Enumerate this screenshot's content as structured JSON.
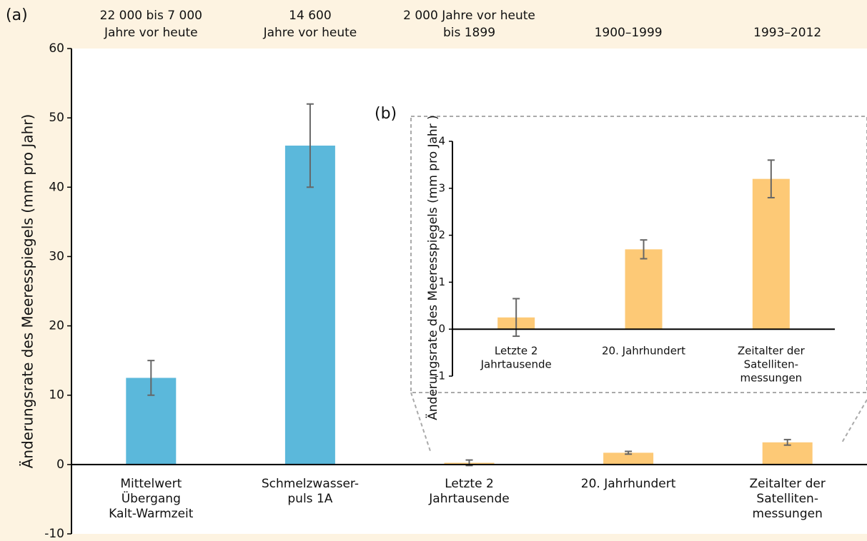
{
  "chart_data": [
    {
      "type": "bar",
      "panel": "(a)",
      "ylabel": "Änderungsrate des Meeresspiegels (mm pro Jahr)",
      "periods": [
        [
          "22 000 bis 7 000",
          "Jahre vor heute"
        ],
        [
          "14 600",
          "Jahre vor heute"
        ],
        [
          "2 000 Jahre vor heute",
          "bis 1899"
        ],
        [
          "1900–1999"
        ],
        [
          "1993–2012"
        ]
      ],
      "categories": [
        [
          "Mittelwert",
          "Übergang",
          "Kalt-Warmzeit"
        ],
        [
          "Schmelzwasser-",
          "puls 1A"
        ],
        [
          "Letzte 2",
          "Jahrtausende"
        ],
        [
          "20. Jahrhundert"
        ],
        [
          "Zeitalter der",
          "Satelliten-",
          "messungen"
        ]
      ],
      "values": [
        12.5,
        46,
        0.25,
        1.7,
        3.2
      ],
      "errors": [
        2.5,
        6,
        0.4,
        0.2,
        0.4
      ],
      "colors": [
        "#5bb8db",
        "#5bb8db",
        "#fdc976",
        "#fdc976",
        "#fdc976"
      ],
      "ylim": [
        -10,
        60
      ],
      "yticks": [
        -10,
        0,
        10,
        20,
        30,
        40,
        50,
        60
      ]
    },
    {
      "type": "bar",
      "panel": "(b)",
      "ylabel": "Änderungsrate des Meeresspiegels (mm pro Jahr )",
      "categories": [
        [
          "Letzte 2",
          "Jahrtausende"
        ],
        [
          "20. Jahrhundert"
        ],
        [
          "Zeitalter der",
          "Satelliten-",
          "messungen"
        ]
      ],
      "values": [
        0.25,
        1.7,
        3.2
      ],
      "errors": [
        0.4,
        0.2,
        0.4
      ],
      "colors": [
        "#fdc976",
        "#fdc976",
        "#fdc976"
      ],
      "ylim": [
        -1,
        4
      ],
      "yticks": [
        -1,
        0,
        1,
        2,
        3,
        4
      ]
    }
  ]
}
